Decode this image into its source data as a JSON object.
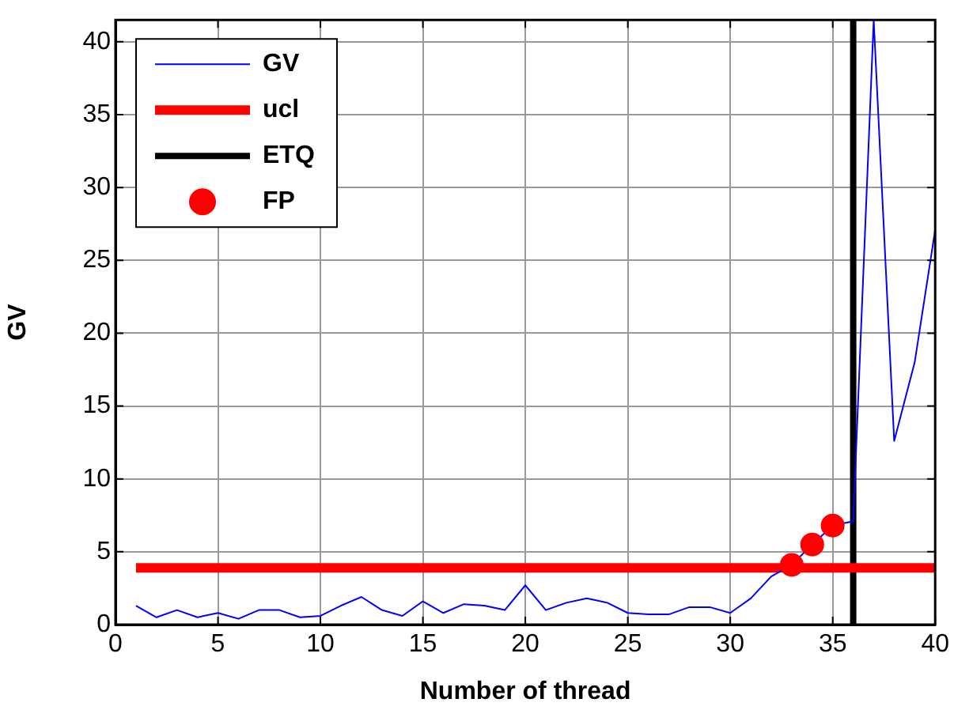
{
  "chart_data": {
    "type": "line",
    "xlabel": "Number of thread",
    "ylabel": "GV",
    "xlim": [
      0,
      40
    ],
    "ylim": [
      0,
      41.5
    ],
    "xticks": [
      0,
      5,
      10,
      15,
      20,
      25,
      30,
      35,
      40
    ],
    "yticks": [
      0,
      5,
      10,
      15,
      20,
      25,
      30,
      35,
      40
    ],
    "grid": true,
    "legend": "top left",
    "series": [
      {
        "name": "GV",
        "type": "line",
        "color": "#0000ff",
        "x": [
          1,
          2,
          3,
          4,
          5,
          6,
          7,
          8,
          9,
          10,
          11,
          12,
          13,
          14,
          15,
          16,
          17,
          18,
          19,
          20,
          21,
          22,
          23,
          24,
          25,
          26,
          27,
          28,
          29,
          30,
          31,
          32,
          33,
          34,
          35,
          36,
          37,
          38,
          39,
          40
        ],
        "values": [
          1.3,
          0.5,
          1.0,
          0.5,
          0.8,
          0.4,
          1.0,
          1.0,
          0.5,
          0.6,
          1.3,
          1.9,
          1.0,
          0.6,
          1.6,
          0.8,
          1.4,
          1.3,
          1.0,
          2.7,
          1.0,
          1.5,
          1.8,
          1.5,
          0.8,
          0.7,
          0.7,
          1.2,
          1.2,
          0.8,
          1.8,
          3.3,
          4.1,
          5.5,
          6.8,
          7.1,
          41.5,
          12.6,
          18,
          27.1
        ]
      },
      {
        "name": "ucl",
        "type": "line",
        "color": "#ff0000",
        "x": [
          1,
          40
        ],
        "values": [
          3.9,
          3.9
        ]
      },
      {
        "name": "ETQ",
        "type": "line",
        "color": "#000000",
        "x": [
          36,
          36
        ],
        "values": [
          0,
          41.5
        ]
      },
      {
        "name": "FP",
        "type": "scatter",
        "color": "#ff0000",
        "marker": "circle",
        "x": [
          33,
          34,
          35
        ],
        "values": [
          4.1,
          5.5,
          6.8
        ]
      }
    ]
  }
}
